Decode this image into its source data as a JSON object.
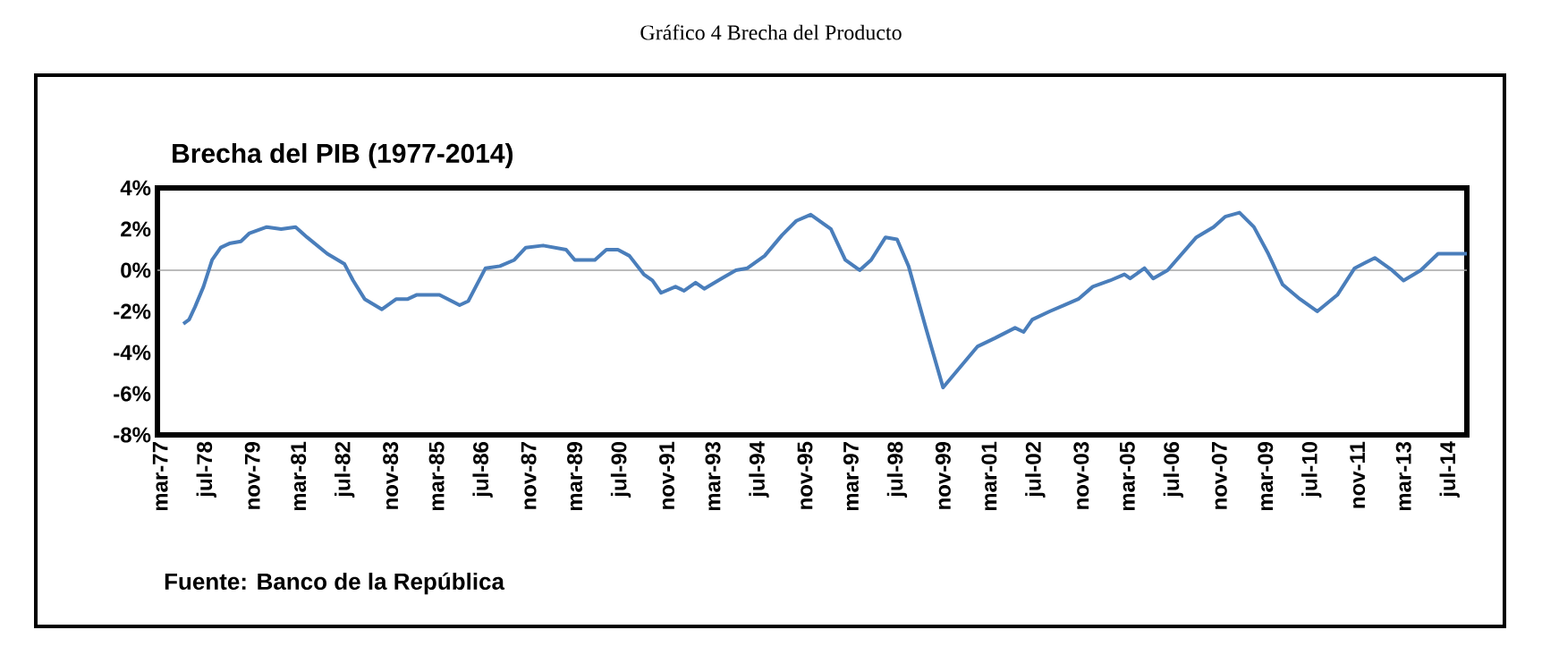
{
  "chart_data": {
    "type": "line",
    "title": "Gráfico  4 Brecha del Producto",
    "subtitle": "Brecha del PIB (1977-2014)",
    "annotations": [
      "Fuente: Banco de la República"
    ],
    "x": [
      "1977-11",
      "1978-01",
      "1978-03",
      "1978-06",
      "1978-09",
      "1978-12",
      "1979-03",
      "1979-07",
      "1979-10",
      "1980-04",
      "1980-09",
      "1981-02",
      "1981-06",
      "1982-01",
      "1982-07",
      "1982-10",
      "1983-02",
      "1983-08",
      "1984-01",
      "1984-05",
      "1984-08",
      "1985-04",
      "1985-11",
      "1986-02",
      "1986-08",
      "1987-01",
      "1987-06",
      "1987-10",
      "1988-04",
      "1988-12",
      "1989-03",
      "1989-10",
      "1990-02",
      "1990-06",
      "1990-10",
      "1991-03",
      "1991-06",
      "1991-09",
      "1992-02",
      "1992-05",
      "1992-09",
      "1992-12",
      "1993-06",
      "1993-11",
      "1994-03",
      "1994-09",
      "1995-03",
      "1995-08",
      "1996-01",
      "1996-08",
      "1997-01",
      "1997-06",
      "1997-10",
      "1998-03",
      "1998-07",
      "1998-11",
      "1999-05",
      "1999-11",
      "2000-05",
      "2000-11",
      "2001-05",
      "2001-12",
      "2002-03",
      "2002-06",
      "2002-12",
      "2003-05",
      "2003-10",
      "2004-03",
      "2004-09",
      "2005-02",
      "2005-04",
      "2005-09",
      "2005-12",
      "2006-05",
      "2007-03",
      "2007-09",
      "2008-01",
      "2008-06",
      "2008-11",
      "2009-04",
      "2009-09",
      "2010-03",
      "2010-09",
      "2011-04",
      "2011-10",
      "2012-05",
      "2012-11",
      "2013-03",
      "2013-09",
      "2014-03",
      "2014-08",
      "2015-01"
    ],
    "series": [
      {
        "color": "#4a7ebb",
        "values": [
          -2.6,
          -2.4,
          -1.8,
          -0.8,
          0.5,
          1.1,
          1.3,
          1.4,
          1.8,
          2.1,
          2.0,
          2.1,
          1.6,
          0.8,
          0.3,
          -0.5,
          -1.4,
          -1.9,
          -1.4,
          -1.4,
          -1.2,
          -1.2,
          -1.7,
          -1.5,
          0.1,
          0.2,
          0.5,
          1.1,
          1.2,
          1.0,
          0.5,
          0.5,
          1.0,
          1.0,
          0.7,
          -0.2,
          -0.5,
          -1.1,
          -0.8,
          -1.0,
          -0.6,
          -0.9,
          -0.4,
          0.0,
          0.1,
          0.7,
          1.7,
          2.4,
          2.7,
          2.0,
          0.5,
          0.0,
          0.5,
          1.6,
          1.5,
          0.2,
          -2.8,
          -5.7,
          -4.7,
          -3.7,
          -3.3,
          -2.8,
          -3.0,
          -2.4,
          -2.0,
          -1.7,
          -1.4,
          -0.8,
          -0.5,
          -0.2,
          -0.4,
          0.1,
          -0.4,
          0.0,
          1.6,
          2.1,
          2.6,
          2.8,
          2.1,
          0.8,
          -0.7,
          -1.4,
          -2.0,
          -1.2,
          0.1,
          0.6,
          0.0,
          -0.5,
          0.0,
          0.8,
          0.8,
          0.8
        ]
      }
    ],
    "xlim": [
      "1977-02",
      "2015-01"
    ],
    "xticks": [
      {
        "value": "1977-03",
        "label": "mar-77"
      },
      {
        "value": "1978-07",
        "label": "jul-78"
      },
      {
        "value": "1979-11",
        "label": "nov-79"
      },
      {
        "value": "1981-03",
        "label": "mar-81"
      },
      {
        "value": "1982-07",
        "label": "jul-82"
      },
      {
        "value": "1983-11",
        "label": "nov-83"
      },
      {
        "value": "1985-03",
        "label": "mar-85"
      },
      {
        "value": "1986-07",
        "label": "jul-86"
      },
      {
        "value": "1987-11",
        "label": "nov-87"
      },
      {
        "value": "1989-03",
        "label": "mar-89"
      },
      {
        "value": "1990-07",
        "label": "jul-90"
      },
      {
        "value": "1991-11",
        "label": "nov-91"
      },
      {
        "value": "1993-03",
        "label": "mar-93"
      },
      {
        "value": "1994-07",
        "label": "jul-94"
      },
      {
        "value": "1995-11",
        "label": "nov-95"
      },
      {
        "value": "1997-03",
        "label": "mar-97"
      },
      {
        "value": "1998-07",
        "label": "jul-98"
      },
      {
        "value": "1999-11",
        "label": "nov-99"
      },
      {
        "value": "2001-03",
        "label": "mar-01"
      },
      {
        "value": "2002-07",
        "label": "jul-02"
      },
      {
        "value": "2003-11",
        "label": "nov-03"
      },
      {
        "value": "2005-03",
        "label": "mar-05"
      },
      {
        "value": "2006-07",
        "label": "jul-06"
      },
      {
        "value": "2007-11",
        "label": "nov-07"
      },
      {
        "value": "2009-03",
        "label": "mar-09"
      },
      {
        "value": "2010-07",
        "label": "jul-10"
      },
      {
        "value": "2011-11",
        "label": "nov-11"
      },
      {
        "value": "2013-03",
        "label": "mar-13"
      },
      {
        "value": "2014-07",
        "label": "jul-14"
      }
    ],
    "ylim": [
      -8,
      4
    ],
    "yticks": [
      {
        "value": 4,
        "label": "4%"
      },
      {
        "value": 2,
        "label": "2%"
      },
      {
        "value": 0,
        "label": "0%"
      },
      {
        "value": -2,
        "label": "-2%"
      },
      {
        "value": -4,
        "label": "-4%"
      },
      {
        "value": -6,
        "label": "-6%"
      },
      {
        "value": -8,
        "label": "-8%"
      }
    ],
    "ref_lines": [
      {
        "axis": "y",
        "value": 0,
        "color": "#a6a6a6"
      }
    ],
    "grid": false,
    "marker": "none",
    "line_style": "solid"
  }
}
